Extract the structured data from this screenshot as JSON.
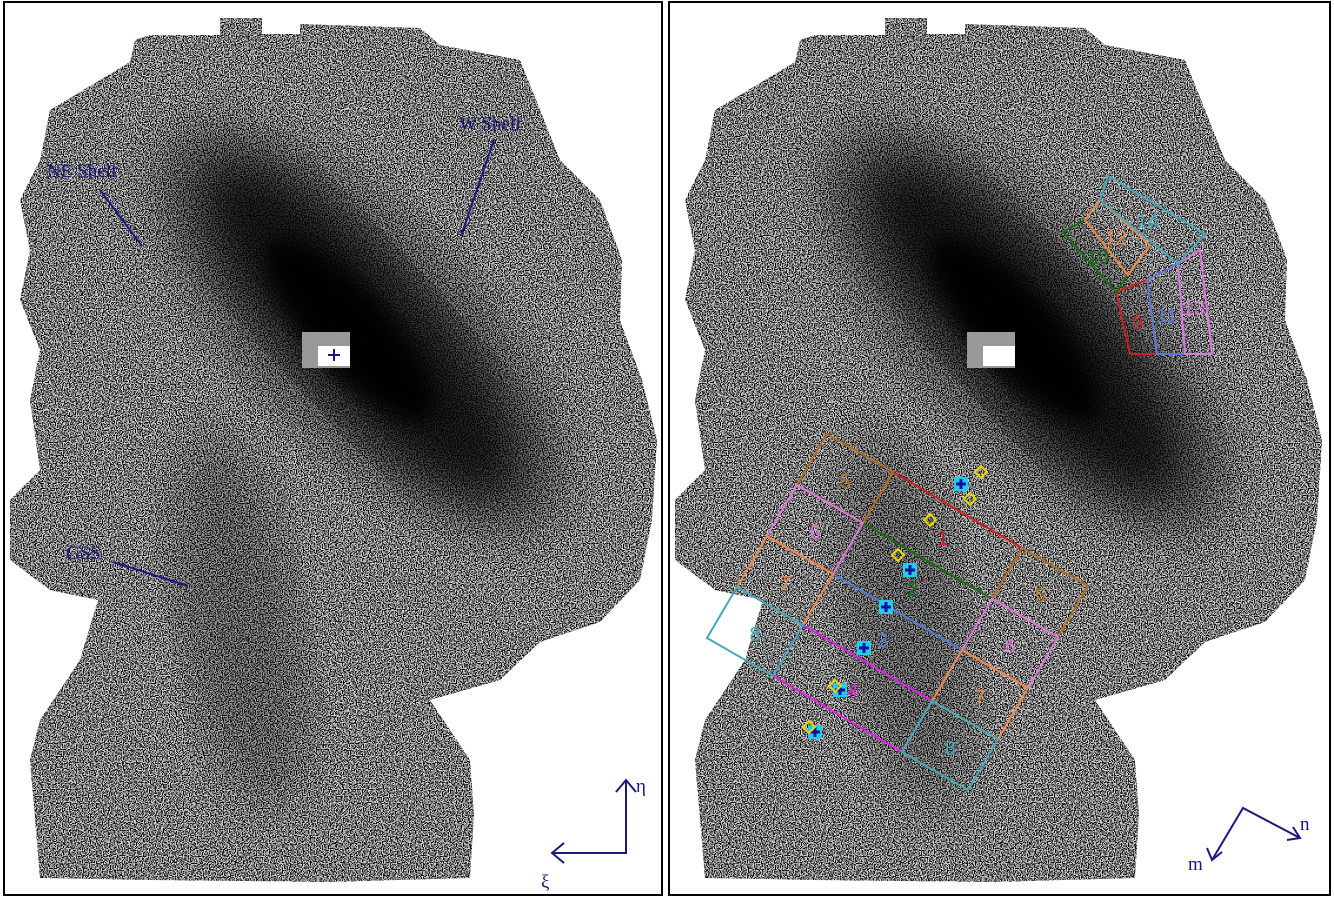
{
  "left_panel": {
    "labels": {
      "ne_shelf": "NE Shelf",
      "w_shelf": "W Shelf",
      "gss": "GSS"
    },
    "axes": {
      "up": "η",
      "left": "ξ"
    }
  },
  "right_panel": {
    "fields": [
      "1",
      "2",
      "3",
      "4",
      "5",
      "5",
      "6",
      "6",
      "7",
      "7",
      "8",
      "8",
      "9",
      "10",
      "11",
      "12",
      "13",
      "14"
    ],
    "axes": {
      "m": "m",
      "n": "n"
    }
  }
}
